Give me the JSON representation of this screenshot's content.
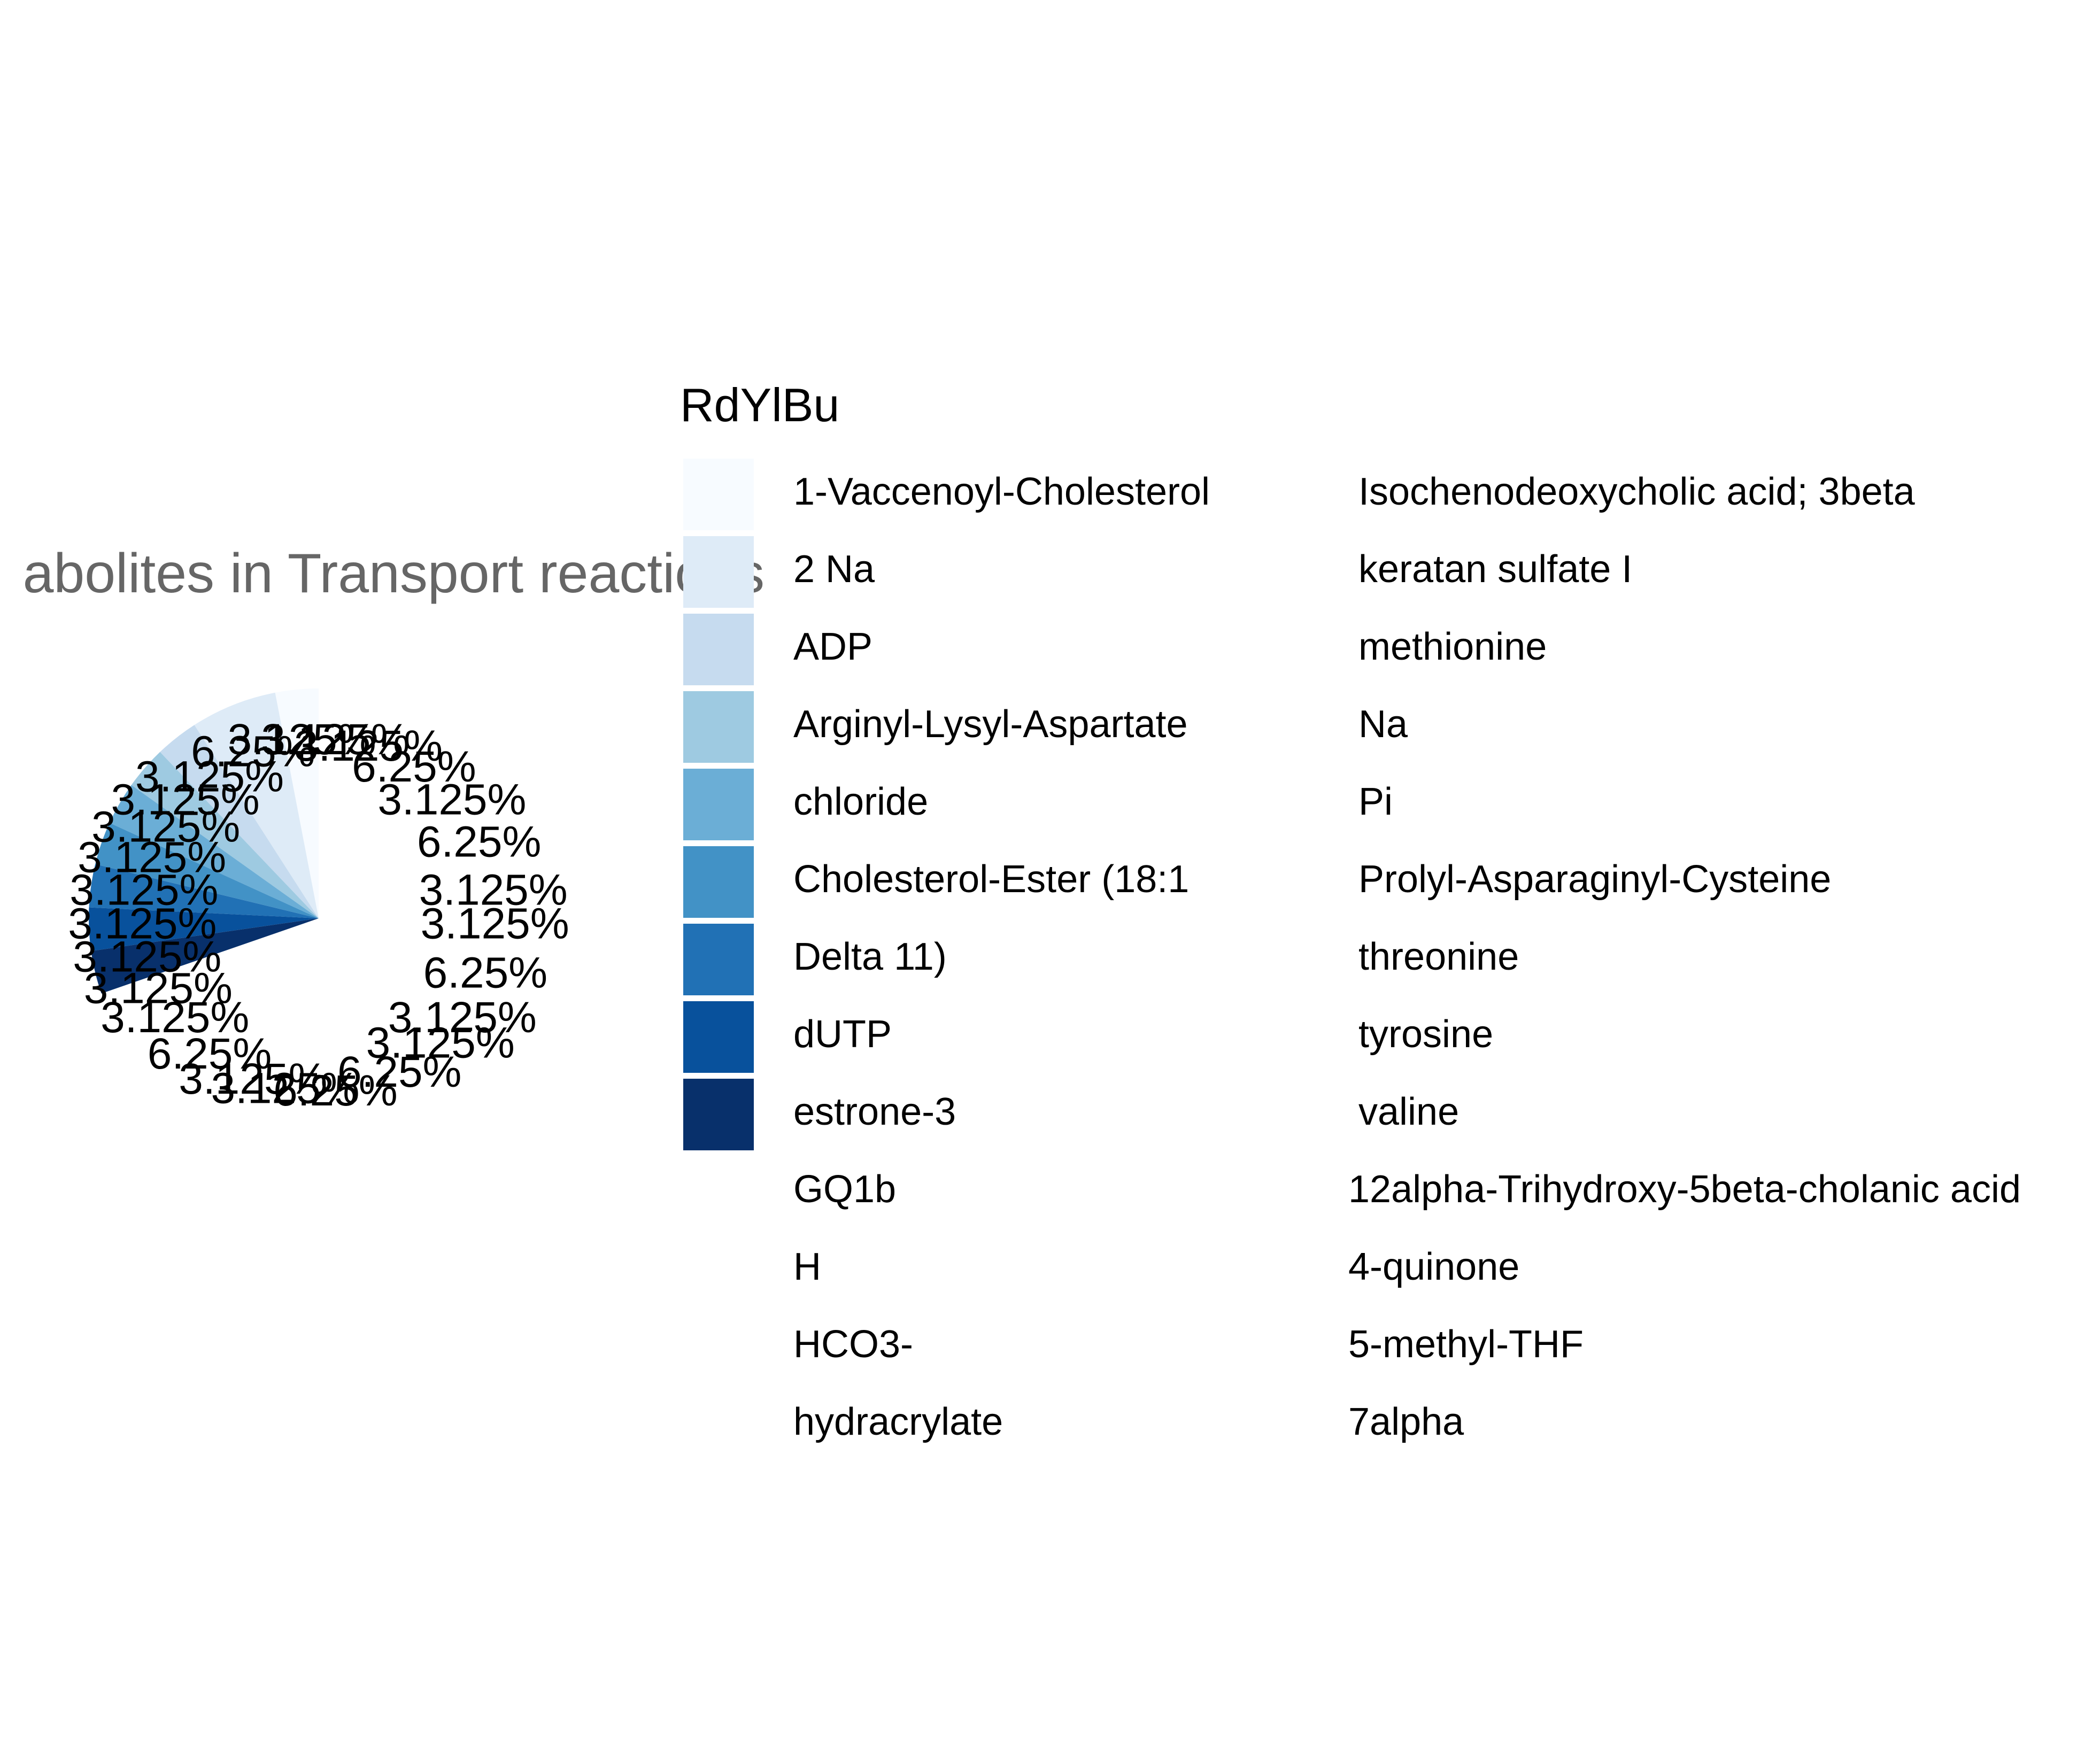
{
  "chart_data": {
    "type": "pie",
    "title": "abolites in Transport reactions",
    "legend": {
      "title": "RdYlBu",
      "placement": "right",
      "columns": 2,
      "entries": [
        "1-Vaccenoyl-Cholesterol",
        "2 Na",
        "ADP",
        "Arginyl-Lysyl-Aspartate",
        "chloride",
        "Cholesterol-Ester (18:1",
        "Delta 11)",
        "dUTP",
        "estrone-3",
        "GQ1b",
        "H",
        "HCO3-",
        "hydracrylate",
        "Isochenodeoxycholic acid; 3beta",
        "keratan sulfate I",
        "methionine",
        "Na",
        "Pi",
        "Prolyl-Asparaginyl-Cysteine",
        "threonine",
        "tyrosine",
        "valine",
        "12alpha-Trihydroxy-5beta-cholanic acid",
        "4-quinone",
        "5-methyl-THF",
        "7alpha"
      ],
      "swatch_colors": [
        "#f7fbff",
        "#deebf7",
        "#c6dbef",
        "#9ecae1",
        "#6baed6",
        "#4292c6",
        "#2171b5",
        "#08519c",
        "#08306b"
      ]
    },
    "slices": [
      {
        "label": "3.125%",
        "value": 3.125
      },
      {
        "label": "6.25%",
        "value": 6.25
      },
      {
        "label": "3.125%",
        "value": 3.125
      },
      {
        "label": "3.125%",
        "value": 3.125
      },
      {
        "label": "3.125%",
        "value": 3.125
      },
      {
        "label": "3.125%",
        "value": 3.125
      },
      {
        "label": "3.125%",
        "value": 3.125
      },
      {
        "label": "3.125%",
        "value": 3.125
      },
      {
        "label": "3.125%",
        "value": 3.125
      },
      {
        "label": "3.125%",
        "value": 3.125
      },
      {
        "label": "3.125%",
        "value": 3.125
      },
      {
        "label": "6.25%",
        "value": 6.25
      },
      {
        "label": "3.125%",
        "value": 3.125
      },
      {
        "label": "3.125%",
        "value": 3.125
      },
      {
        "label": "6.25%",
        "value": 6.25
      },
      {
        "label": "6.25%",
        "value": 6.25
      },
      {
        "label": "3.125%",
        "value": 3.125
      },
      {
        "label": "3.125%",
        "value": 3.125
      },
      {
        "label": "6.25%",
        "value": 6.25
      },
      {
        "label": "3.125%",
        "value": 3.125
      },
      {
        "label": "3.125%",
        "value": 3.125
      },
      {
        "label": "6.25%",
        "value": 6.25
      },
      {
        "label": "3.125%",
        "value": 3.125
      },
      {
        "label": "6.25%",
        "value": 6.25
      },
      {
        "label": "3.125%",
        "value": 3.125
      },
      {
        "label": "3.125%",
        "value": 3.125
      }
    ],
    "slice_colors": [
      "#f7fbff",
      "#deebf7",
      "#c6dbef",
      "#9ecae1",
      "#6baed6",
      "#4292c6",
      "#2171b5",
      "#08519c",
      "#08306b"
    ]
  }
}
